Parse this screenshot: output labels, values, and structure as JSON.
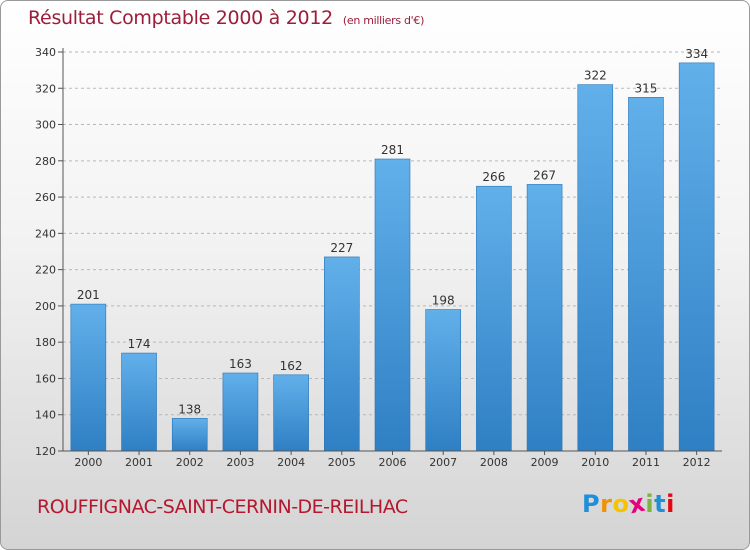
{
  "title": "Résultat Comptable 2000 à 2012",
  "unit": "(en milliers d'€)",
  "commune": "ROUFFIGNAC-SAINT-CERNIN-DE-REILHAC",
  "logo": {
    "letters": [
      "P",
      "r",
      "o",
      "x",
      "i",
      "t",
      "i"
    ],
    "colors": [
      "#1f8fd8",
      "#f39200",
      "#f4c400",
      "#e6007e",
      "#7cb342",
      "#1f8fd8",
      "#e30613"
    ]
  },
  "colors": {
    "bar_light": "#62b0ea",
    "bar_dark": "#2f7fc4",
    "axis": "#555555",
    "grid": "#b8b8b8"
  },
  "chart_data": {
    "type": "bar",
    "title": "Résultat Comptable 2000 à 2012",
    "xlabel": "",
    "ylabel": "(en milliers d'€)",
    "categories": [
      "2000",
      "2001",
      "2002",
      "2003",
      "2004",
      "2005",
      "2006",
      "2007",
      "2008",
      "2009",
      "2010",
      "2011",
      "2012"
    ],
    "values": [
      201,
      174,
      138,
      163,
      162,
      227,
      281,
      198,
      266,
      267,
      322,
      315,
      334
    ],
    "ylim": [
      120,
      340
    ],
    "yticks": [
      120,
      140,
      160,
      180,
      200,
      220,
      240,
      260,
      280,
      300,
      320,
      340
    ],
    "grid": true,
    "legend": "none"
  }
}
